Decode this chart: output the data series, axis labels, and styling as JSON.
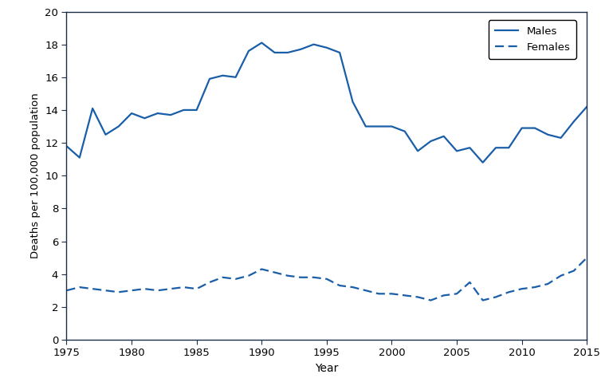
{
  "years": [
    1975,
    1976,
    1977,
    1978,
    1979,
    1980,
    1981,
    1982,
    1983,
    1984,
    1985,
    1986,
    1987,
    1988,
    1989,
    1990,
    1991,
    1992,
    1993,
    1994,
    1995,
    1996,
    1997,
    1998,
    1999,
    2000,
    2001,
    2002,
    2003,
    2004,
    2005,
    2006,
    2007,
    2008,
    2009,
    2010,
    2011,
    2012,
    2013,
    2014,
    2015
  ],
  "males": [
    11.8,
    11.1,
    14.1,
    12.5,
    13.0,
    13.8,
    13.5,
    13.8,
    13.7,
    14.0,
    14.0,
    15.9,
    16.1,
    16.0,
    17.6,
    18.1,
    17.5,
    17.5,
    17.7,
    18.0,
    17.8,
    17.5,
    14.5,
    13.0,
    13.0,
    13.0,
    12.7,
    11.5,
    12.1,
    12.4,
    11.5,
    11.7,
    10.8,
    11.7,
    11.7,
    12.9,
    12.9,
    12.5,
    12.3,
    13.3,
    14.2
  ],
  "females": [
    3.0,
    3.2,
    3.1,
    3.0,
    2.9,
    3.0,
    3.1,
    3.0,
    3.1,
    3.2,
    3.1,
    3.5,
    3.8,
    3.7,
    3.9,
    4.3,
    4.1,
    3.9,
    3.8,
    3.8,
    3.7,
    3.3,
    3.2,
    3.0,
    2.8,
    2.8,
    2.7,
    2.6,
    2.4,
    2.7,
    2.8,
    3.5,
    2.4,
    2.6,
    2.9,
    3.1,
    3.2,
    3.4,
    3.9,
    4.2,
    5.0
  ],
  "line_color": "#1a5ea8",
  "spine_color": "#1a2e4a",
  "xlabel": "Year",
  "ylabel": "Deaths per 100,000 population",
  "ylim": [
    0,
    20
  ],
  "xlim": [
    1975,
    2015
  ],
  "yticks": [
    0,
    2,
    4,
    6,
    8,
    10,
    12,
    14,
    16,
    18,
    20
  ],
  "xticks": [
    1975,
    1980,
    1985,
    1990,
    1995,
    2000,
    2005,
    2010,
    2015
  ],
  "legend_males": "Males",
  "legend_females": "Females",
  "figsize": [
    7.59,
    4.84
  ],
  "dpi": 100
}
